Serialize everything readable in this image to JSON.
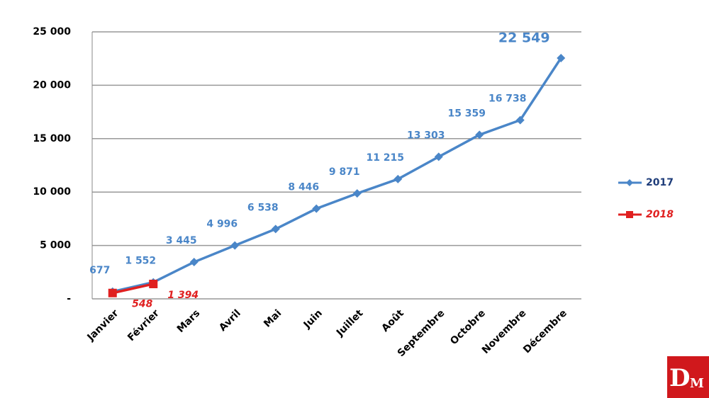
{
  "chart_data": {
    "type": "line",
    "categories": [
      "Janvier",
      "Février",
      "Mars",
      "Avril",
      "Mai",
      "Juin",
      "Juillet",
      "Août",
      "Septembre",
      "Octobre",
      "Novembre",
      "Décembre"
    ],
    "series": [
      {
        "name": "2017",
        "color": "#4a86c8",
        "marker": "diamond",
        "values": [
          677,
          1552,
          3445,
          4996,
          6538,
          8446,
          9871,
          11215,
          13303,
          15359,
          16738,
          22549
        ],
        "value_labels": [
          "677",
          "1 552",
          "3 445",
          "4 996",
          "6 538",
          "8 446",
          "9 871",
          "11 215",
          "13 303",
          "15 359",
          "16 738",
          "22 549"
        ]
      },
      {
        "name": "2018",
        "color": "#e02020",
        "marker": "square",
        "values": [
          548,
          1394,
          null,
          null,
          null,
          null,
          null,
          null,
          null,
          null,
          null,
          null
        ],
        "value_labels": [
          "548",
          "1 394",
          null,
          null,
          null,
          null,
          null,
          null,
          null,
          null,
          null,
          null
        ]
      }
    ],
    "ylim": [
      0,
      25000
    ],
    "yticks": [
      {
        "value": 0,
        "label": "-"
      },
      {
        "value": 5000,
        "label": "5 000"
      },
      {
        "value": 10000,
        "label": "10 000"
      },
      {
        "value": 15000,
        "label": "15 000"
      },
      {
        "value": 20000,
        "label": "20 000"
      },
      {
        "value": 25000,
        "label": "25 000"
      }
    ],
    "grid": true,
    "legend": "right",
    "logo": {
      "big": "D",
      "small": "M"
    }
  }
}
